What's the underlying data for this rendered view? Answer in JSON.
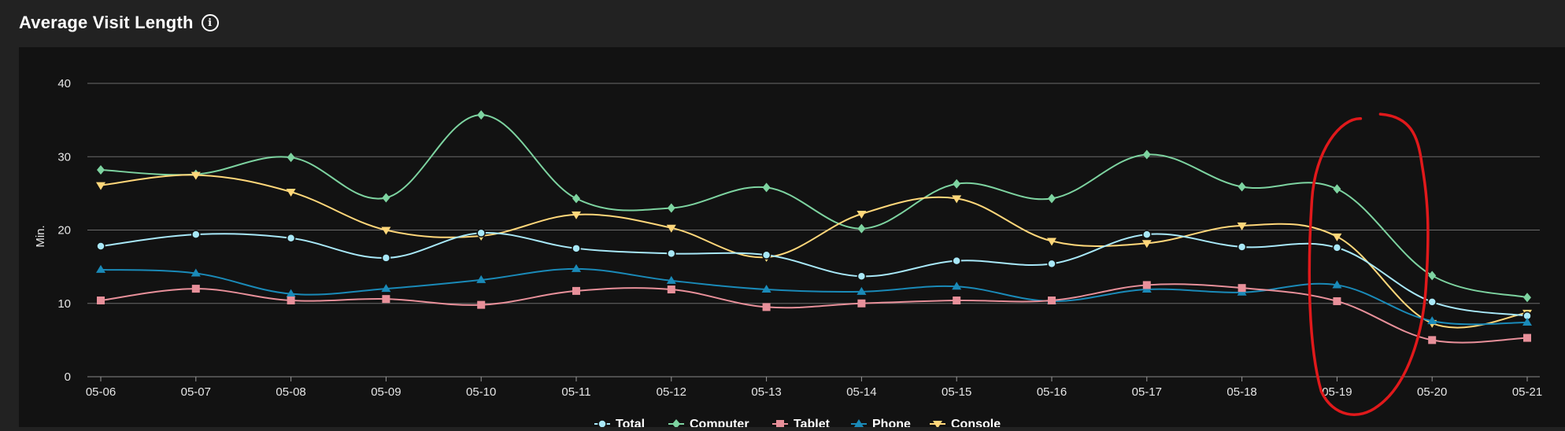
{
  "header": {
    "title": "Average Visit Length",
    "info_icon": "info-icon"
  },
  "chart_data": {
    "type": "line",
    "title": "Average Visit Length",
    "xlabel": "",
    "ylabel": "Min.",
    "ylim": [
      0,
      40
    ],
    "yticks": [
      0,
      10,
      20,
      30,
      40
    ],
    "grid": true,
    "legend_position": "bottom",
    "categories": [
      "05-06",
      "05-07",
      "05-08",
      "05-09",
      "05-10",
      "05-11",
      "05-12",
      "05-13",
      "05-14",
      "05-15",
      "05-16",
      "05-17",
      "05-18",
      "05-19",
      "05-20",
      "05-21"
    ],
    "series": [
      {
        "name": "Total",
        "color": "#a8e8f8",
        "marker": "circle",
        "values": [
          17.8,
          19.4,
          18.9,
          16.2,
          19.6,
          17.5,
          16.8,
          16.6,
          13.7,
          15.8,
          15.4,
          19.4,
          17.7,
          17.6,
          10.2,
          8.3
        ]
      },
      {
        "name": "Computer",
        "color": "#7dd3a0",
        "marker": "diamond",
        "values": [
          28.2,
          27.6,
          29.9,
          24.4,
          35.7,
          24.3,
          23.0,
          25.8,
          20.2,
          26.3,
          24.3,
          30.3,
          25.9,
          25.6,
          13.8,
          10.8
        ]
      },
      {
        "name": "Tablet",
        "color": "#e8909a",
        "marker": "square",
        "values": [
          10.4,
          12.0,
          10.4,
          10.6,
          9.8,
          11.7,
          11.9,
          9.5,
          10.0,
          10.4,
          10.4,
          12.5,
          12.1,
          10.3,
          5.0,
          5.3
        ]
      },
      {
        "name": "Phone",
        "color": "#1a8ab8",
        "marker": "triangle",
        "values": [
          14.6,
          14.1,
          11.3,
          12.0,
          13.2,
          14.7,
          13.1,
          11.9,
          11.6,
          12.3,
          10.3,
          11.9,
          11.5,
          12.5,
          7.6,
          7.4
        ]
      },
      {
        "name": "Console",
        "color": "#ffd77a",
        "marker": "triangle-down",
        "values": [
          26.1,
          27.5,
          25.2,
          20.0,
          19.2,
          22.1,
          20.3,
          16.3,
          22.2,
          24.3,
          18.5,
          18.2,
          20.6,
          19.1,
          7.3,
          8.7
        ]
      }
    ],
    "annotations": [
      {
        "type": "freehand-ellipse",
        "color": "#e0191b",
        "around_categories": [
          "05-19",
          "05-20"
        ]
      }
    ]
  }
}
